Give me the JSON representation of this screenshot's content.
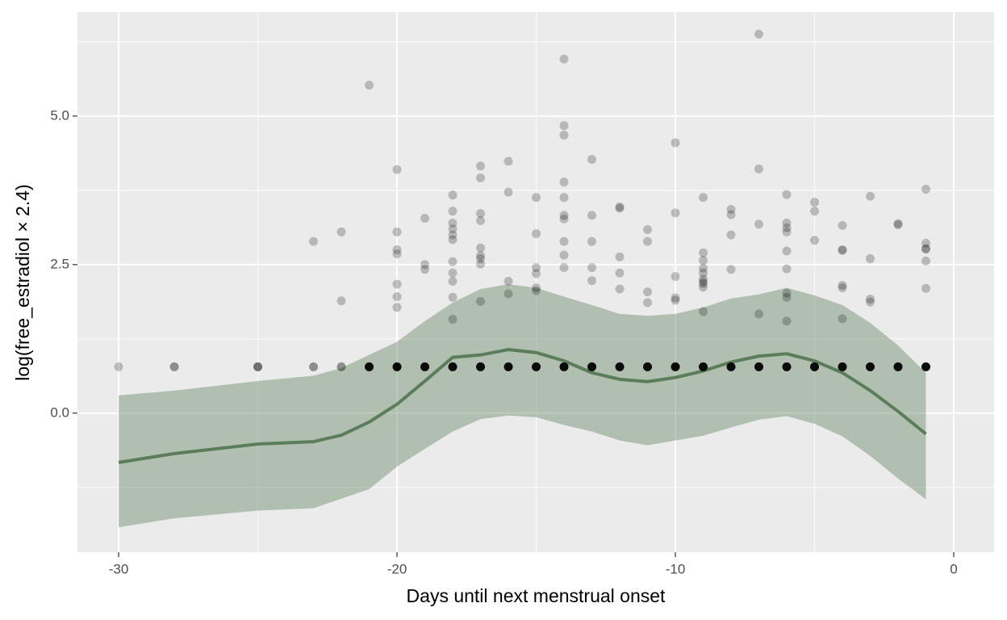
{
  "chart_data": {
    "type": "scatter",
    "x_label": "Days until next menstrual onset",
    "y_label": "log(free_estradiol × 2.4)",
    "xlim": [
      -31.48,
      1.45
    ],
    "ylim": [
      -2.34,
      6.75
    ],
    "xticks": [
      -30,
      -20,
      -10,
      0
    ],
    "yticks": [
      {
        "value": 0,
        "label": "0.0"
      },
      {
        "value": 2.5,
        "label": "2.5"
      },
      {
        "value": 5,
        "label": "5.0"
      }
    ],
    "x_minor_ticks": [
      -25,
      -15,
      -5
    ],
    "y_minor_ticks": [
      -1.25,
      1.25,
      3.75,
      6.25
    ],
    "grid": true,
    "series": [
      {
        "type": "line",
        "color": "#5a7d5a",
        "band_color": "#5a7d5a",
        "x": [
          -30,
          -28,
          -25,
          -23,
          -22,
          -21,
          -20,
          -19,
          -18,
          -17,
          -16,
          -15,
          -14,
          -13,
          -12,
          -11,
          -10,
          -9,
          -8,
          -7,
          -6,
          -5,
          -4,
          -3,
          -2,
          -1
        ],
        "values": [
          -0.83,
          -0.68,
          -0.52,
          -0.48,
          -0.37,
          -0.15,
          0.15,
          0.54,
          0.94,
          0.98,
          1.07,
          1.02,
          0.88,
          0.68,
          0.57,
          0.53,
          0.6,
          0.71,
          0.86,
          0.96,
          1.0,
          0.88,
          0.68,
          0.38,
          0.03,
          -0.35
        ],
        "upper": [
          0.3,
          0.38,
          0.54,
          0.63,
          0.76,
          0.98,
          1.2,
          1.55,
          1.86,
          2.09,
          2.17,
          2.11,
          1.96,
          1.82,
          1.67,
          1.64,
          1.67,
          1.78,
          1.93,
          2.0,
          2.11,
          1.98,
          1.82,
          1.52,
          1.14,
          0.68
        ],
        "lower": [
          -1.92,
          -1.77,
          -1.64,
          -1.6,
          -1.44,
          -1.28,
          -0.9,
          -0.6,
          -0.31,
          -0.1,
          -0.04,
          -0.07,
          -0.2,
          -0.31,
          -0.46,
          -0.54,
          -0.46,
          -0.38,
          -0.24,
          -0.11,
          -0.05,
          -0.18,
          -0.39,
          -0.72,
          -1.1,
          -1.45
        ]
      },
      {
        "type": "scatter",
        "color": "#000000",
        "opacity": 0.22,
        "x": [
          -30,
          -28,
          -28,
          -25,
          -25,
          -25,
          -23,
          -23,
          -23,
          -22,
          -22,
          -22,
          -22,
          -21,
          -20,
          -20,
          -20,
          -20,
          -20,
          -20,
          -20,
          -19,
          -19,
          -19,
          -18,
          -18,
          -18,
          -18,
          -18,
          -18,
          -18,
          -18,
          -18,
          -18,
          -18,
          -17,
          -17,
          -17,
          -17,
          -17,
          -17,
          -17,
          -17,
          -17,
          -16,
          -16,
          -16,
          -16,
          -15,
          -15,
          -15,
          -15,
          -15,
          -15,
          -14,
          -14,
          -14,
          -14,
          -14,
          -14,
          -14,
          -14,
          -14,
          -14,
          -13,
          -13,
          -13,
          -13,
          -13,
          -12,
          -12,
          -12,
          -12,
          -12,
          -11,
          -11,
          -11,
          -11,
          -10,
          -10,
          -10,
          -10,
          -10,
          -9,
          -9,
          -9,
          -9,
          -9,
          -9,
          -9,
          -9,
          -9,
          -9,
          -8,
          -8,
          -8,
          -8,
          -7,
          -7,
          -7,
          -7,
          -6,
          -6,
          -6,
          -6,
          -6,
          -6,
          -6,
          -6,
          -6,
          -5,
          -5,
          -5,
          -4,
          -4,
          -4,
          -4,
          -4,
          -4,
          -3,
          -3,
          -3,
          -3,
          -2,
          -2,
          -1,
          -1,
          -1,
          -1,
          -1,
          -1
        ],
        "values": [
          0.78,
          0.78,
          0.78,
          0.78,
          0.78,
          0.78,
          2.89,
          0.78,
          0.78,
          3.05,
          1.89,
          0.78,
          0.78,
          5.52,
          4.1,
          3.05,
          2.75,
          2.68,
          2.17,
          1.96,
          1.78,
          3.28,
          2.5,
          2.42,
          3.67,
          3.4,
          3.2,
          3.1,
          3.0,
          2.92,
          2.55,
          2.36,
          2.22,
          1.95,
          1.58,
          4.16,
          3.96,
          3.36,
          3.24,
          2.78,
          2.65,
          2.6,
          2.51,
          1.88,
          4.24,
          3.72,
          2.22,
          2.01,
          3.63,
          3.02,
          2.45,
          2.35,
          2.11,
          2.06,
          5.96,
          4.84,
          4.68,
          3.89,
          3.63,
          3.33,
          3.27,
          2.89,
          2.66,
          2.45,
          4.27,
          3.33,
          2.89,
          2.45,
          2.23,
          3.47,
          3.45,
          2.63,
          2.36,
          2.09,
          3.09,
          2.89,
          2.04,
          1.86,
          4.55,
          3.37,
          2.3,
          1.94,
          1.9,
          3.63,
          2.7,
          2.57,
          2.44,
          2.36,
          2.26,
          2.21,
          2.18,
          2.12,
          1.71,
          3.43,
          3.34,
          3.0,
          2.42,
          6.38,
          4.11,
          3.18,
          1.67,
          3.68,
          3.2,
          3.12,
          3.05,
          2.73,
          2.43,
          2.02,
          1.95,
          1.55,
          3.55,
          3.4,
          2.91,
          3.16,
          2.75,
          2.74,
          2.15,
          2.11,
          1.59,
          3.65,
          2.6,
          1.92,
          1.87,
          3.19,
          3.17,
          3.77,
          2.86,
          2.77,
          2.76,
          2.56,
          2.1
        ]
      },
      {
        "type": "scatter",
        "color": "#000000",
        "opacity": 0.95,
        "x": [
          -21,
          -20,
          -19,
          -18,
          -17,
          -16,
          -15,
          -14,
          -13,
          -12,
          -11,
          -10,
          -9,
          -8,
          -7,
          -6,
          -5,
          -4,
          -3,
          -2,
          -1
        ],
        "values": [
          0.78,
          0.78,
          0.78,
          0.78,
          0.78,
          0.78,
          0.78,
          0.78,
          0.78,
          0.78,
          0.78,
          0.78,
          0.78,
          0.78,
          0.78,
          0.78,
          0.78,
          0.78,
          0.78,
          0.78,
          0.78
        ]
      }
    ]
  }
}
